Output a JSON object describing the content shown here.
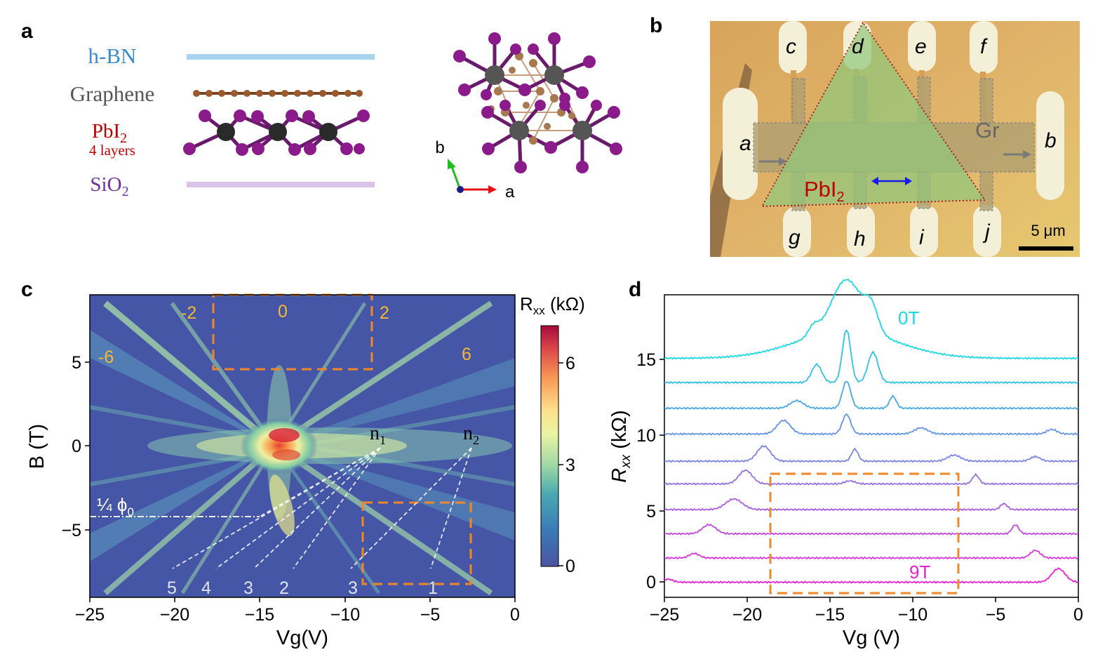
{
  "panels": {
    "a": "a",
    "b": "b",
    "c": "c",
    "d": "d"
  },
  "panel_a": {
    "layers": [
      "h-BN",
      "Graphene",
      "PbI",
      "SiO"
    ],
    "pbi_sub": "2",
    "pbi_note": "4 layers",
    "sio_sub": "2",
    "axis_b": "b",
    "axis_a": "a"
  },
  "panel_b": {
    "contacts": [
      "a",
      "b",
      "c",
      "d",
      "e",
      "f",
      "g",
      "h",
      "i",
      "j"
    ],
    "gr_label": "Gr",
    "pbi_label": "PbI",
    "pbi_sub": "2",
    "scale_label": "5 μm"
  },
  "chart_data": [
    {
      "type": "heatmap",
      "xlabel": "Vg(V)",
      "ylabel": "B (T)",
      "xlim": [
        -25,
        0
      ],
      "ylim": [
        -9,
        9
      ],
      "xticks": [
        "−25",
        "−20",
        "−15",
        "−10",
        "−5",
        "0"
      ],
      "yticks": [
        "5",
        "0",
        "−5"
      ],
      "colorbar": {
        "label": "R",
        "sub": "xx",
        "unit": " (kΩ)",
        "range": [
          0,
          7
        ],
        "ticks": [
          "6",
          "3",
          "0"
        ]
      },
      "filling_labels": [
        "-6",
        "-2",
        "0",
        "2",
        "6"
      ],
      "flux_label": "¼ ϕ",
      "flux_sub": "0",
      "flux_B": -4.2,
      "point_labels": [
        "n",
        "n"
      ],
      "point_subs": [
        "1",
        "2"
      ],
      "fan_labels": [
        "5",
        "4",
        "3",
        "2",
        "3",
        "1"
      ],
      "highlight_boxes": [
        {
          "vg": [
            -18.5,
            -9
          ],
          "B": [
            4.5,
            9
          ]
        },
        {
          "vg": [
            -9,
            -2.7
          ],
          "B": [
            -8.3,
            -3.5
          ]
        }
      ]
    },
    {
      "type": "line",
      "xlabel": "Vg (V)",
      "ylabel": "R",
      "ylabel_sub": "xx",
      "ylabel_unit": " (kΩ)",
      "xlim": [
        -25,
        0
      ],
      "ylim": [
        -1,
        19
      ],
      "xticks": [
        "−25",
        "−20",
        "−15",
        "−10",
        "−5",
        "0"
      ],
      "yticks": [
        "15",
        "10",
        "5",
        "0"
      ],
      "label_top": "0T",
      "label_bottom": "9T",
      "series_offsets": [
        14.8,
        13.2,
        11.5,
        9.8,
        8.0,
        6.5,
        4.8,
        3.2,
        1.6,
        0.0
      ],
      "series_colors": [
        "#19d9e6",
        "#2fc2e6",
        "#48a9e6",
        "#6295e6",
        "#7c83e6",
        "#9470e6",
        "#ad5ce6",
        "#c348e0",
        "#d935da",
        "#ea20d2"
      ],
      "highlight_box": {
        "vg": [
          -18.5,
          -7.2
        ],
        "R": [
          -0.8,
          7.4
        ]
      }
    }
  ]
}
